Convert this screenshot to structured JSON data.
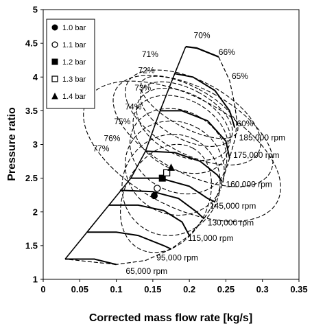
{
  "chart_data": {
    "type": "line",
    "title": "",
    "xlabel": "Corrected mass flow rate [kg/s]",
    "ylabel": "Pressure ratio",
    "xlim": [
      0,
      0.35
    ],
    "ylim": [
      1,
      5
    ],
    "xticks": [
      0,
      0.05,
      0.1,
      0.15,
      0.2,
      0.25,
      0.3,
      0.35
    ],
    "xtick_labels": [
      "0",
      "0.05",
      "0.1",
      "0.15",
      "0.2",
      "0.25",
      "0.3",
      "0.35"
    ],
    "yticks": [
      1,
      1.5,
      2,
      2.5,
      3,
      3.5,
      4,
      4.5,
      5
    ],
    "ytick_labels": [
      "1",
      "1.5",
      "2",
      "2.5",
      "3",
      "3.5",
      "4",
      "4.5",
      "5"
    ],
    "grid": false,
    "legend": {
      "placement": "top-left",
      "entries": [
        {
          "label": "1.0 bar",
          "marker": "filled-circle"
        },
        {
          "label": "1.1 bar",
          "marker": "open-circle"
        },
        {
          "label": "1.2 bar",
          "marker": "filled-square"
        },
        {
          "label": "1.3 bar",
          "marker": "open-square"
        },
        {
          "label": "1.4 bar",
          "marker": "filled-triangle"
        }
      ]
    },
    "operating_points": [
      {
        "series": "1.0 bar",
        "x": 0.152,
        "y": 2.24
      },
      {
        "series": "1.1 bar",
        "x": 0.156,
        "y": 2.35
      },
      {
        "series": "1.2 bar",
        "x": 0.163,
        "y": 2.5
      },
      {
        "series": "1.3 bar",
        "x": 0.169,
        "y": 2.58
      },
      {
        "series": "1.4 bar",
        "x": 0.175,
        "y": 2.66
      }
    ],
    "map_boundary": {
      "surge_line": [
        [
          0.03,
          1.3
        ],
        [
          0.06,
          1.7
        ],
        [
          0.09,
          2.1
        ],
        [
          0.12,
          2.5
        ],
        [
          0.14,
          2.9
        ],
        [
          0.16,
          3.5
        ],
        [
          0.18,
          4.05
        ],
        [
          0.195,
          4.45
        ]
      ],
      "top": [
        [
          0.195,
          4.45
        ],
        [
          0.21,
          4.43
        ],
        [
          0.24,
          4.3
        ]
      ],
      "choke_line": [
        [
          0.24,
          4.3
        ],
        [
          0.255,
          3.95
        ],
        [
          0.262,
          3.6
        ],
        [
          0.265,
          3.35
        ],
        [
          0.263,
          3.1
        ],
        [
          0.255,
          2.8
        ],
        [
          0.245,
          2.45
        ],
        [
          0.235,
          2.15
        ],
        [
          0.22,
          1.9
        ],
        [
          0.2,
          1.65
        ],
        [
          0.175,
          1.45
        ],
        [
          0.14,
          1.28
        ],
        [
          0.1,
          1.22
        ]
      ],
      "bottom": [
        [
          0.1,
          1.22
        ],
        [
          0.03,
          1.3
        ]
      ]
    },
    "speed_lines": [
      {
        "label": "65,000 rpm",
        "points": [
          [
            0.03,
            1.3
          ],
          [
            0.07,
            1.3
          ],
          [
            0.1,
            1.22
          ]
        ]
      },
      {
        "label": "95,000 rpm",
        "points": [
          [
            0.06,
            1.7
          ],
          [
            0.1,
            1.7
          ],
          [
            0.13,
            1.65
          ],
          [
            0.165,
            1.5
          ],
          [
            0.175,
            1.45
          ]
        ]
      },
      {
        "label": "115,000 rpm",
        "points": [
          [
            0.09,
            2.1
          ],
          [
            0.13,
            2.1
          ],
          [
            0.165,
            2.02
          ],
          [
            0.19,
            1.85
          ],
          [
            0.2,
            1.65
          ]
        ]
      },
      {
        "label": "130,000 rpm",
        "points": [
          [
            0.105,
            2.32
          ],
          [
            0.15,
            2.3
          ],
          [
            0.185,
            2.2
          ],
          [
            0.21,
            2.0
          ],
          [
            0.22,
            1.9
          ]
        ]
      },
      {
        "label": "145,000 rpm",
        "points": [
          [
            0.12,
            2.5
          ],
          [
            0.16,
            2.5
          ],
          [
            0.2,
            2.38
          ],
          [
            0.225,
            2.2
          ],
          [
            0.235,
            2.15
          ]
        ]
      },
      {
        "label": "160,000 rpm",
        "points": [
          [
            0.14,
            2.9
          ],
          [
            0.18,
            2.88
          ],
          [
            0.215,
            2.75
          ],
          [
            0.238,
            2.55
          ],
          [
            0.245,
            2.45
          ]
        ]
      },
      {
        "label": "175,000 rpm",
        "points": [
          [
            0.16,
            3.5
          ],
          [
            0.19,
            3.5
          ],
          [
            0.225,
            3.35
          ],
          [
            0.25,
            3.05
          ],
          [
            0.255,
            2.8
          ]
        ]
      },
      {
        "label": "185,000 rpm",
        "points": [
          [
            0.18,
            4.05
          ],
          [
            0.205,
            4.0
          ],
          [
            0.235,
            3.8
          ],
          [
            0.255,
            3.5
          ],
          [
            0.262,
            3.25
          ]
        ]
      }
    ],
    "efficiency_contours": [
      {
        "label": "70%",
        "center": [
          0.2,
          3.55
        ],
        "rx": 0.028,
        "ry": 0.8
      },
      {
        "label": "71%",
        "center": [
          0.196,
          3.45
        ],
        "rx": 0.034,
        "ry": 0.75
      },
      {
        "label": "72%",
        "center": [
          0.192,
          3.3
        ],
        "rx": 0.042,
        "ry": 0.75
      },
      {
        "label": "73%",
        "center": [
          0.188,
          3.15
        ],
        "rx": 0.048,
        "ry": 0.75
      },
      {
        "label": "74%",
        "center": [
          0.185,
          2.9
        ],
        "rx": 0.055,
        "ry": 0.75
      },
      {
        "label": "75%",
        "center": [
          0.18,
          2.65
        ],
        "rx": 0.063,
        "ry": 0.75
      },
      {
        "label": "76%",
        "center": [
          0.175,
          2.4
        ],
        "rx": 0.07,
        "ry": 0.72
      },
      {
        "label": "77%",
        "center": [
          0.168,
          2.2
        ],
        "rx": 0.078,
        "ry": 0.62
      },
      {
        "label": "66%",
        "center": [
          0.205,
          3.4
        ],
        "rx": 0.05,
        "ry": 1.1
      },
      {
        "label": "65%",
        "center": [
          0.205,
          3.2
        ],
        "rx": 0.058,
        "ry": 1.3
      },
      {
        "label": "60%",
        "center": [
          0.19,
          2.9
        ],
        "rx": 0.075,
        "ry": 1.6
      }
    ],
    "annotations": [
      {
        "text": "70%",
        "x": 0.206,
        "y": 4.58
      },
      {
        "text": "66%",
        "x": 0.24,
        "y": 4.33
      },
      {
        "text": "65%",
        "x": 0.258,
        "y": 3.97
      },
      {
        "text": "60%",
        "x": 0.265,
        "y": 3.27
      },
      {
        "text": "71%",
        "x": 0.135,
        "y": 4.3
      },
      {
        "text": "72%",
        "x": 0.13,
        "y": 4.06
      },
      {
        "text": "73%",
        "x": 0.125,
        "y": 3.8
      },
      {
        "text": "74%",
        "x": 0.112,
        "y": 3.52
      },
      {
        "text": "75%",
        "x": 0.097,
        "y": 3.3
      },
      {
        "text": "76%",
        "x": 0.083,
        "y": 3.05
      },
      {
        "text": "77%",
        "x": 0.068,
        "y": 2.9
      },
      {
        "text": "185,000 rpm",
        "x": 0.268,
        "y": 3.06
      },
      {
        "text": "175,000 rpm",
        "x": 0.26,
        "y": 2.8
      },
      {
        "text": "160,000 rpm",
        "x": 0.25,
        "y": 2.37
      },
      {
        "text": "145,000 rpm",
        "x": 0.228,
        "y": 2.05
      },
      {
        "text": "130,000 rpm",
        "x": 0.225,
        "y": 1.8
      },
      {
        "text": "115,000 rpm",
        "x": 0.198,
        "y": 1.57
      },
      {
        "text": "95,000 rpm",
        "x": 0.155,
        "y": 1.28
      },
      {
        "text": "65,000 rpm",
        "x": 0.113,
        "y": 1.08
      }
    ]
  }
}
